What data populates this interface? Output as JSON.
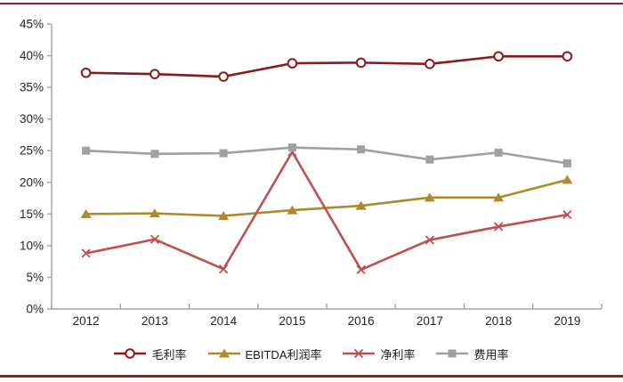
{
  "frame": {
    "rule_color": "#84272B",
    "axis_color": "#A3A3A3",
    "label_color": "#262626"
  },
  "chart_data": {
    "type": "line",
    "categories": [
      "2012",
      "2013",
      "2014",
      "2015",
      "2016",
      "2017",
      "2018",
      "2019"
    ],
    "series": [
      {
        "name": "毛利率",
        "color": "#8B1A1A",
        "marker": "open-circle",
        "values": [
          37.3,
          37.1,
          36.7,
          38.8,
          38.9,
          38.7,
          39.9,
          39.9
        ]
      },
      {
        "name": "EBITDA利润率",
        "color": "#AE8A2D",
        "marker": "triangle",
        "values": [
          15.0,
          15.1,
          14.7,
          15.6,
          16.3,
          17.6,
          17.6,
          20.4
        ]
      },
      {
        "name": "净利率",
        "color": "#C0504D",
        "marker": "x",
        "values": [
          8.8,
          11.0,
          6.3,
          24.8,
          6.2,
          10.9,
          13.0,
          14.9
        ]
      },
      {
        "name": "费用率",
        "color": "#A0A0A0",
        "marker": "square",
        "values": [
          25.0,
          24.5,
          24.6,
          25.5,
          25.2,
          23.6,
          24.7,
          23.0
        ]
      }
    ],
    "title": "",
    "xlabel": "",
    "ylabel": "",
    "ylim": [
      0,
      45
    ],
    "y_tick_step": 5,
    "y_tick_format": "percent",
    "grid": false,
    "legend_position": "bottom"
  }
}
